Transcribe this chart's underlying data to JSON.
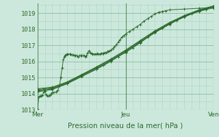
{
  "title": "",
  "xlabel": "Pression niveau de la mer( hPa )",
  "bg_color": "#cce8dd",
  "grid_color_major": "#88bb99",
  "grid_color_minor": "#aad4bb",
  "line_color": "#2d6a2d",
  "xlim": [
    0,
    48
  ],
  "ylim": [
    1013.0,
    1019.6
  ],
  "yticks": [
    1013,
    1014,
    1015,
    1016,
    1017,
    1018,
    1019
  ],
  "xtick_positions": [
    0,
    24,
    48
  ],
  "xtick_labels": [
    "Mer",
    "Jeu",
    "Ven"
  ],
  "series": [
    [
      0.0,
      1013.05,
      0.3,
      1013.8,
      0.7,
      1013.85,
      1.0,
      1013.85,
      1.3,
      1013.9,
      1.7,
      1014.1,
      2.0,
      1014.15,
      2.3,
      1013.95,
      2.7,
      1013.85,
      3.0,
      1013.85,
      3.3,
      1013.9,
      3.7,
      1014.0,
      4.0,
      1014.05,
      4.3,
      1014.05,
      5.0,
      1014.1,
      5.5,
      1014.2,
      6.0,
      1014.5,
      6.3,
      1015.0,
      6.7,
      1015.6,
      7.0,
      1016.1,
      7.3,
      1016.3,
      7.5,
      1016.35,
      7.7,
      1016.4,
      8.0,
      1016.45,
      8.3,
      1016.45,
      8.7,
      1016.45,
      9.0,
      1016.45,
      9.3,
      1016.4,
      9.7,
      1016.4,
      10.0,
      1016.35,
      10.3,
      1016.35,
      10.7,
      1016.35,
      11.0,
      1016.3,
      11.3,
      1016.35,
      11.7,
      1016.35,
      12.0,
      1016.35,
      12.3,
      1016.35,
      12.7,
      1016.35,
      13.0,
      1016.3,
      13.3,
      1016.35,
      13.7,
      1016.55,
      14.0,
      1016.65,
      14.3,
      1016.55,
      14.7,
      1016.5,
      15.0,
      1016.45,
      15.3,
      1016.45,
      15.7,
      1016.45,
      16.0,
      1016.45,
      16.3,
      1016.5,
      16.7,
      1016.45,
      17.0,
      1016.45,
      17.3,
      1016.5,
      17.7,
      1016.5,
      18.0,
      1016.5,
      18.3,
      1016.55,
      18.7,
      1016.55,
      19.0,
      1016.6,
      19.3,
      1016.6,
      19.7,
      1016.65,
      20.0,
      1016.7,
      20.5,
      1016.8,
      21.0,
      1016.9,
      21.5,
      1017.05,
      22.0,
      1017.2,
      22.5,
      1017.35,
      23.0,
      1017.5,
      23.5,
      1017.6,
      24.0,
      1017.7,
      25.0,
      1017.85,
      26.0,
      1018.0,
      27.0,
      1018.15,
      28.0,
      1018.3,
      29.0,
      1018.5,
      30.0,
      1018.65,
      31.0,
      1018.8,
      32.0,
      1018.95,
      33.0,
      1019.05,
      34.0,
      1019.1,
      35.0,
      1019.15,
      36.0,
      1019.2,
      40.0,
      1019.25,
      44.0,
      1019.3,
      48.0,
      1019.35
    ],
    [
      0.0,
      1014.1,
      4.0,
      1014.25,
      8.0,
      1014.6,
      12.0,
      1015.05,
      16.0,
      1015.5,
      18.0,
      1015.75,
      20.0,
      1016.0,
      22.0,
      1016.3,
      24.0,
      1016.55,
      26.0,
      1016.85,
      28.0,
      1017.15,
      30.0,
      1017.5,
      32.0,
      1017.8,
      34.0,
      1018.05,
      36.0,
      1018.3,
      38.0,
      1018.55,
      40.0,
      1018.75,
      42.0,
      1018.95,
      44.0,
      1019.1,
      46.0,
      1019.22,
      48.0,
      1019.32
    ],
    [
      0.0,
      1014.15,
      4.0,
      1014.28,
      8.0,
      1014.62,
      12.0,
      1015.08,
      16.0,
      1015.53,
      20.0,
      1016.02,
      24.0,
      1016.58,
      28.0,
      1017.18,
      32.0,
      1017.78,
      36.0,
      1018.32,
      40.0,
      1018.77,
      44.0,
      1019.12,
      48.0,
      1019.38
    ],
    [
      0.0,
      1014.2,
      4.0,
      1014.32,
      8.0,
      1014.65,
      12.0,
      1015.12,
      16.0,
      1015.58,
      20.0,
      1016.07,
      24.0,
      1016.62,
      28.0,
      1017.22,
      32.0,
      1017.82,
      36.0,
      1018.36,
      40.0,
      1018.8,
      44.0,
      1019.15,
      48.0,
      1019.4
    ],
    [
      0.0,
      1014.25,
      4.0,
      1014.35,
      8.0,
      1014.68,
      12.0,
      1015.15,
      16.0,
      1015.62,
      20.0,
      1016.12,
      24.0,
      1016.67,
      28.0,
      1017.27,
      32.0,
      1017.87,
      36.0,
      1018.38,
      40.0,
      1018.82,
      44.0,
      1019.17,
      48.0,
      1019.42
    ],
    [
      0.0,
      1014.3,
      4.0,
      1014.4,
      8.0,
      1014.72,
      12.0,
      1015.18,
      16.0,
      1015.65,
      20.0,
      1016.15,
      24.0,
      1016.7,
      28.0,
      1017.3,
      32.0,
      1017.9,
      36.0,
      1018.42,
      40.0,
      1018.85,
      44.0,
      1019.2,
      48.0,
      1019.45
    ]
  ]
}
